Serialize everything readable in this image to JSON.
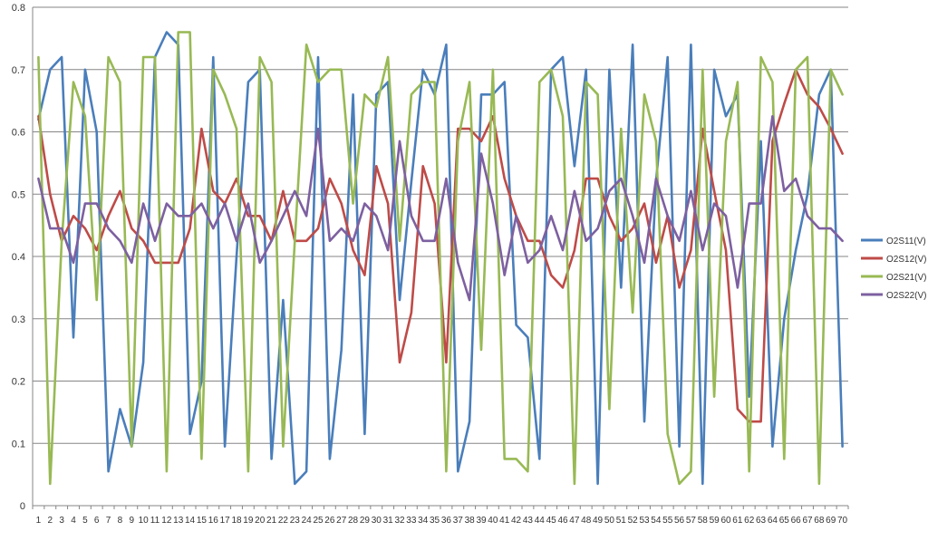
{
  "chart_data": {
    "type": "line",
    "title": "",
    "xlabel": "",
    "ylabel": "",
    "ylim": [
      0,
      0.8
    ],
    "yticks": [
      "0",
      "0.1",
      "0.2",
      "0.3",
      "0.4",
      "0.5",
      "0.6",
      "0.7",
      "0.8"
    ],
    "ytick_values": [
      0,
      0.1,
      0.2,
      0.3,
      0.4,
      0.5,
      0.6,
      0.7,
      0.8
    ],
    "grid": "horizontal",
    "legend_position": "right",
    "categories": [
      "1",
      "2",
      "3",
      "4",
      "5",
      "6",
      "7",
      "8",
      "9",
      "10",
      "11",
      "12",
      "13",
      "14",
      "15",
      "16",
      "17",
      "18",
      "19",
      "20",
      "21",
      "22",
      "23",
      "24",
      "25",
      "26",
      "27",
      "28",
      "29",
      "30",
      "31",
      "32",
      "33",
      "34",
      "35",
      "36",
      "37",
      "38",
      "39",
      "40",
      "41",
      "42",
      "43",
      "44",
      "45",
      "46",
      "47",
      "48",
      "49",
      "50",
      "51",
      "52",
      "53",
      "54",
      "55",
      "56",
      "57",
      "58",
      "59",
      "60",
      "61",
      "62",
      "63",
      "64",
      "65",
      "66",
      "67",
      "68",
      "69",
      "70"
    ],
    "series": [
      {
        "name": "O2S11(V)",
        "color": "#4a7ebb",
        "values": [
          0.62,
          0.7,
          0.72,
          0.27,
          0.7,
          0.6,
          0.055,
          0.155,
          0.095,
          0.23,
          0.72,
          0.76,
          0.74,
          0.115,
          0.2,
          0.72,
          0.095,
          0.4,
          0.68,
          0.7,
          0.075,
          0.33,
          0.035,
          0.055,
          0.72,
          0.075,
          0.25,
          0.66,
          0.115,
          0.66,
          0.68,
          0.33,
          0.52,
          0.7,
          0.66,
          0.74,
          0.055,
          0.135,
          0.66,
          0.66,
          0.68,
          0.29,
          0.27,
          0.075,
          0.7,
          0.72,
          0.545,
          0.7,
          0.035,
          0.7,
          0.35,
          0.74,
          0.135,
          0.52,
          0.72,
          0.095,
          0.74,
          0.035,
          0.7,
          0.625,
          0.66,
          0.175,
          0.585,
          0.095,
          0.3,
          0.41,
          0.5,
          0.66,
          0.7,
          0.095
        ]
      },
      {
        "name": "O2S12(V)",
        "color": "#be4b48",
        "values": [
          0.625,
          0.5,
          0.425,
          0.465,
          0.445,
          0.41,
          0.465,
          0.505,
          0.445,
          0.425,
          0.39,
          0.39,
          0.39,
          0.445,
          0.605,
          0.505,
          0.485,
          0.525,
          0.465,
          0.465,
          0.425,
          0.505,
          0.425,
          0.425,
          0.445,
          0.525,
          0.485,
          0.41,
          0.37,
          0.545,
          0.485,
          0.23,
          0.31,
          0.545,
          0.485,
          0.23,
          0.605,
          0.605,
          0.585,
          0.625,
          0.525,
          0.465,
          0.425,
          0.425,
          0.37,
          0.35,
          0.41,
          0.525,
          0.525,
          0.465,
          0.425,
          0.445,
          0.485,
          0.39,
          0.465,
          0.35,
          0.41,
          0.605,
          0.505,
          0.41,
          0.155,
          0.135,
          0.135,
          0.585,
          0.645,
          0.7,
          0.66,
          0.64,
          0.605,
          0.565
        ]
      },
      {
        "name": "O2S21(V)",
        "color": "#98b954",
        "values": [
          0.72,
          0.035,
          0.425,
          0.68,
          0.625,
          0.33,
          0.72,
          0.68,
          0.095,
          0.72,
          0.72,
          0.055,
          0.76,
          0.76,
          0.075,
          0.7,
          0.66,
          0.605,
          0.055,
          0.72,
          0.68,
          0.095,
          0.425,
          0.74,
          0.68,
          0.7,
          0.7,
          0.485,
          0.66,
          0.64,
          0.72,
          0.425,
          0.66,
          0.68,
          0.68,
          0.055,
          0.585,
          0.68,
          0.25,
          0.7,
          0.075,
          0.075,
          0.055,
          0.68,
          0.7,
          0.625,
          0.035,
          0.68,
          0.66,
          0.155,
          0.605,
          0.31,
          0.66,
          0.585,
          0.115,
          0.035,
          0.055,
          0.7,
          0.175,
          0.585,
          0.68,
          0.055,
          0.72,
          0.68,
          0.075,
          0.7,
          0.72,
          0.035,
          0.7,
          0.66
        ]
      },
      {
        "name": "O2S22(V)",
        "color": "#7d60a0",
        "values": [
          0.525,
          0.445,
          0.445,
          0.39,
          0.485,
          0.485,
          0.445,
          0.425,
          0.39,
          0.485,
          0.425,
          0.485,
          0.465,
          0.465,
          0.485,
          0.445,
          0.485,
          0.425,
          0.485,
          0.39,
          0.425,
          0.465,
          0.505,
          0.465,
          0.605,
          0.425,
          0.445,
          0.425,
          0.485,
          0.465,
          0.41,
          0.585,
          0.465,
          0.425,
          0.425,
          0.525,
          0.39,
          0.33,
          0.565,
          0.485,
          0.37,
          0.465,
          0.39,
          0.41,
          0.465,
          0.41,
          0.505,
          0.425,
          0.445,
          0.505,
          0.525,
          0.465,
          0.39,
          0.525,
          0.465,
          0.425,
          0.505,
          0.41,
          0.485,
          0.465,
          0.35,
          0.485,
          0.485,
          0.625,
          0.505,
          0.525,
          0.465,
          0.445,
          0.445,
          0.425
        ]
      }
    ]
  }
}
